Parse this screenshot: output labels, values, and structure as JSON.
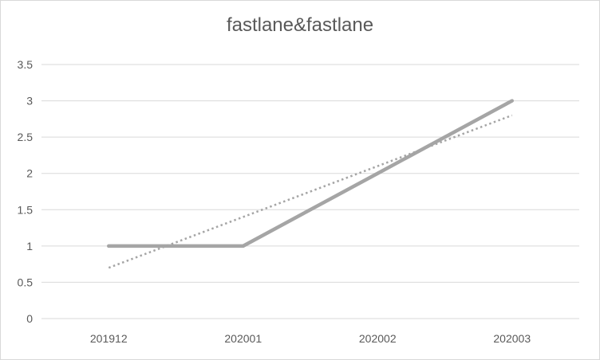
{
  "chart_data": {
    "type": "line",
    "title": "fastlane&fastlane",
    "xlabel": "",
    "ylabel": "",
    "categories": [
      "201912",
      "202001",
      "202002",
      "202003"
    ],
    "series": [
      {
        "values": [
          1,
          1,
          2,
          3
        ],
        "style": "solid",
        "color": "#a5a5a5"
      },
      {
        "trendline": "linear",
        "values": [
          0.7,
          1.4,
          2.1,
          2.8
        ],
        "style": "dotted",
        "color": "#a5a5a5"
      }
    ],
    "ylim": [
      0,
      3.5
    ],
    "yticks": [
      "0",
      "0.5",
      "1",
      "1.5",
      "2",
      "2.5",
      "3",
      "3.5"
    ],
    "grid": true,
    "legend": "none"
  }
}
